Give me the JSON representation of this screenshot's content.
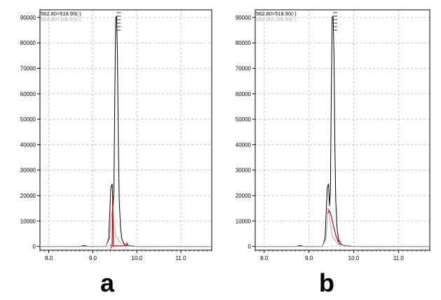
{
  "panel_labels": [
    "a",
    "b"
  ],
  "chart_data": [
    {
      "type": "line",
      "panel": "a",
      "xlim": [
        7.8,
        11.7
      ],
      "ylim": [
        -1500,
        93000
      ],
      "xticks": [
        8.0,
        9.0,
        10.0,
        11.0
      ],
      "xtick_labels": [
        "8.0",
        "9.0",
        "10.0",
        "11.0"
      ],
      "yticks": [
        0,
        10000,
        20000,
        30000,
        40000,
        50000,
        60000,
        70000,
        80000,
        90000
      ],
      "ytick_labels": [
        "0",
        "10000",
        "20000",
        "30000",
        "40000",
        "50000",
        "60000",
        "70000",
        "80000",
        "90000"
      ],
      "grid": true,
      "legend_position": "top-left",
      "series": [
        {
          "name": "562.80>518.90(-)",
          "color": "#000000",
          "x": [
            7.8,
            8.7,
            8.8,
            8.9,
            9.3,
            9.36,
            9.41,
            9.44,
            9.46,
            9.48,
            9.5,
            9.52,
            9.54,
            9.56,
            9.58,
            9.6,
            9.63,
            9.66,
            9.7,
            9.75,
            9.85,
            10.0,
            10.5,
            11.0,
            11.7
          ],
          "y": [
            0,
            0,
            300,
            0,
            0,
            3000,
            23000,
            24500,
            16000,
            22000,
            60000,
            90000,
            90500,
            75000,
            40000,
            18000,
            7000,
            3000,
            1200,
            500,
            200,
            0,
            0,
            0,
            0
          ]
        },
        {
          "name": "562.80>166.85(-)",
          "color": "#aaaaaa",
          "x": [
            7.8,
            9.3,
            9.38,
            9.42,
            9.45,
            9.48,
            9.52,
            9.56,
            9.6,
            9.65,
            9.7,
            9.8,
            9.9,
            11.7
          ],
          "y": [
            0,
            0,
            3000,
            13000,
            14000,
            9000,
            4000,
            3000,
            2000,
            1200,
            600,
            200,
            0,
            0
          ]
        },
        {
          "name": "",
          "color": "#cc0000",
          "x": [
            9.44,
            9.45,
            9.47,
            9.5,
            9.7,
            9.8
          ],
          "y": [
            0,
            20000,
            0,
            200,
            200,
            800
          ]
        }
      ]
    },
    {
      "type": "line",
      "panel": "b",
      "xlim": [
        7.8,
        11.7
      ],
      "ylim": [
        -1500,
        93000
      ],
      "xticks": [
        8.0,
        9.0,
        10.0,
        11.0
      ],
      "xtick_labels": [
        "8.0",
        "9.0",
        "10.0",
        "11.0"
      ],
      "yticks": [
        0,
        10000,
        20000,
        30000,
        40000,
        50000,
        60000,
        70000,
        80000,
        90000
      ],
      "ytick_labels": [
        "0",
        "10000",
        "20000",
        "30000",
        "40000",
        "50000",
        "60000",
        "70000",
        "80000",
        "90000"
      ],
      "grid": true,
      "legend_position": "top-left",
      "series": [
        {
          "name": "562.80>518.90(-)",
          "color": "#000000",
          "x": [
            7.8,
            8.7,
            8.8,
            8.9,
            9.3,
            9.36,
            9.41,
            9.44,
            9.46,
            9.48,
            9.5,
            9.52,
            9.54,
            9.56,
            9.58,
            9.6,
            9.63,
            9.66,
            9.7,
            9.75,
            9.85,
            10.0,
            10.5,
            11.0,
            11.7
          ],
          "y": [
            0,
            0,
            300,
            0,
            0,
            3000,
            23000,
            24500,
            16000,
            22000,
            60000,
            90000,
            90500,
            75000,
            40000,
            18000,
            7000,
            3000,
            1200,
            500,
            200,
            0,
            0,
            0,
            0
          ]
        },
        {
          "name": "562.80>166.85(-)",
          "color": "#aaaaaa",
          "x": [
            7.8,
            9.3,
            9.38,
            9.42,
            9.45,
            9.48,
            9.52,
            9.56,
            9.6,
            9.65,
            9.7,
            9.8,
            9.9,
            11.7
          ],
          "y": [
            0,
            0,
            3000,
            13000,
            14000,
            9000,
            4000,
            3000,
            2000,
            1200,
            600,
            200,
            0,
            0
          ]
        },
        {
          "name": "",
          "color": "#cc0000",
          "x": [
            9.46,
            9.5,
            9.55,
            9.6,
            9.65,
            9.7
          ],
          "y": [
            14000,
            12000,
            8000,
            4500,
            2000,
            1500
          ]
        }
      ]
    }
  ]
}
